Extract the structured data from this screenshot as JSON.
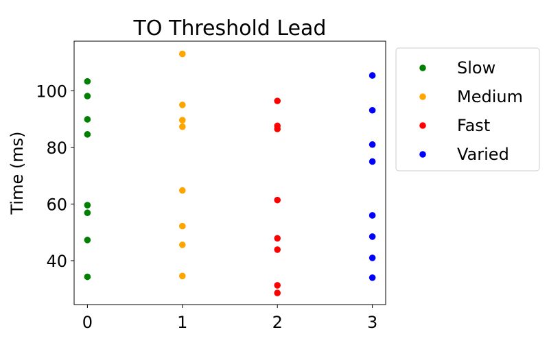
{
  "chart_data": {
    "type": "scatter",
    "title": "TO Threshold Lead",
    "xlabel": "",
    "ylabel": "Time (ms)",
    "xlim": [
      -0.14,
      3.14
    ],
    "ylim": [
      24.5,
      117.5
    ],
    "xticks": [
      0,
      1,
      2,
      3
    ],
    "yticks": [
      40,
      60,
      80,
      100
    ],
    "grid": false,
    "legend_position": "outside-right",
    "series": [
      {
        "name": "Slow",
        "color": "#008000",
        "x": [
          0,
          0,
          0,
          0,
          0,
          0,
          0,
          0
        ],
        "y": [
          103.3,
          98.1,
          89.9,
          84.6,
          59.6,
          56.9,
          47.3,
          34.3
        ]
      },
      {
        "name": "Medium",
        "color": "#FFA500",
        "x": [
          1,
          1,
          1,
          1,
          1,
          1,
          1,
          1
        ],
        "y": [
          113.0,
          95.0,
          89.6,
          87.3,
          64.8,
          52.2,
          45.6,
          34.6
        ]
      },
      {
        "name": "Fast",
        "color": "#FF0000",
        "x": [
          2,
          2,
          2,
          2,
          2,
          2,
          2,
          2
        ],
        "y": [
          96.4,
          87.6,
          86.5,
          61.4,
          47.9,
          43.9,
          31.3,
          28.6
        ]
      },
      {
        "name": "Varied",
        "color": "#0000FF",
        "x": [
          3,
          3,
          3,
          3,
          3,
          3,
          3,
          3
        ],
        "y": [
          105.4,
          93.1,
          81.0,
          75.0,
          56.0,
          48.5,
          41.0,
          34.0
        ]
      }
    ]
  }
}
